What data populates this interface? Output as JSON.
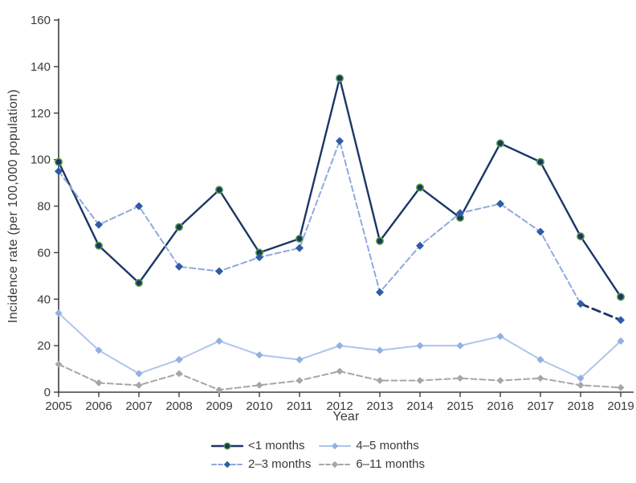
{
  "figure": {
    "ylabel": "Incidence rate (per 100,000 population)",
    "xlabel": "Year",
    "axis_color": "#3f3f3f",
    "text_color": "#3a3a3a",
    "background": "#ffffff"
  },
  "chart_data": {
    "type": "line",
    "title": "",
    "xlabel": "Year",
    "ylabel": "Incidence rate (per 100,000 population)",
    "x": [
      2005,
      2006,
      2007,
      2008,
      2009,
      2010,
      2011,
      2012,
      2013,
      2014,
      2015,
      2016,
      2017,
      2018,
      2019
    ],
    "ylim": [
      0,
      160
    ],
    "ytick_step": 20,
    "grid": false,
    "legend_position": "bottom",
    "series": [
      {
        "name": "<1 months",
        "values": [
          99,
          63,
          47,
          71,
          87,
          60,
          66,
          135,
          65,
          88,
          75,
          107,
          99,
          67,
          41
        ],
        "color": "#1c3666",
        "dash": null,
        "width": 2.4,
        "marker": "circle",
        "marker_color": "#1c3666",
        "marker_edge": "#55a043",
        "marker_size": 4.2
      },
      {
        "name": "2–3 months",
        "values": [
          95,
          72,
          80,
          54,
          52,
          58,
          62,
          108,
          43,
          63,
          77,
          81,
          69,
          38,
          31
        ],
        "color": "#8faadc",
        "dash": "7 4",
        "width": 2,
        "marker": "diamond",
        "marker_color": "#2f5ca6",
        "marker_size": 5,
        "final_segment": {
          "color": "#1c3666",
          "width": 2.8,
          "dash": "10 6"
        }
      },
      {
        "name": "4–5 months",
        "values": [
          34,
          18,
          8,
          14,
          22,
          16,
          14,
          20,
          18,
          20,
          20,
          24,
          14,
          6,
          22
        ],
        "color": "#adc6ec",
        "dash": null,
        "width": 2,
        "marker": "diamond",
        "marker_color": "#8fb2e2",
        "marker_size": 4.6
      },
      {
        "name": "6–11 months",
        "values": [
          12,
          4,
          3,
          8,
          1,
          3,
          5,
          9,
          5,
          5,
          6,
          5,
          6,
          3,
          2
        ],
        "color": "#a6a6a6",
        "dash": "7 4",
        "width": 2,
        "marker": "diamond",
        "marker_color": "#a6a6a6",
        "marker_size": 4.4
      }
    ]
  }
}
